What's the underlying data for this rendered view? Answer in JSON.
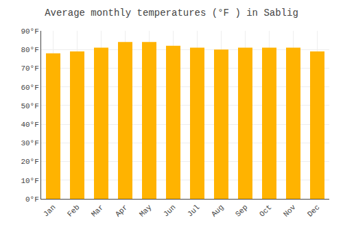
{
  "chart_data": {
    "type": "bar",
    "title": "Average monthly temperatures (°F ) in Sablig",
    "categories": [
      "Jan",
      "Feb",
      "Mar",
      "Apr",
      "May",
      "Jun",
      "Jul",
      "Aug",
      "Sep",
      "Oct",
      "Nov",
      "Dec"
    ],
    "values": [
      78,
      79,
      81,
      84,
      84,
      82,
      81,
      80,
      81,
      81,
      81,
      79
    ],
    "color": "#FFB300",
    "ylim": [
      0,
      90
    ],
    "yticks": [
      {
        "value": 0,
        "label": "0°F"
      },
      {
        "value": 10,
        "label": "10°F"
      },
      {
        "value": 20,
        "label": "20°F"
      },
      {
        "value": 30,
        "label": "30°F"
      },
      {
        "value": 40,
        "label": "40°F"
      },
      {
        "value": 50,
        "label": "50°F"
      },
      {
        "value": 60,
        "label": "60°F"
      },
      {
        "value": 70,
        "label": "70°F"
      },
      {
        "value": 80,
        "label": "80°F"
      },
      {
        "value": 90,
        "label": "90°F"
      }
    ],
    "grid": true
  }
}
